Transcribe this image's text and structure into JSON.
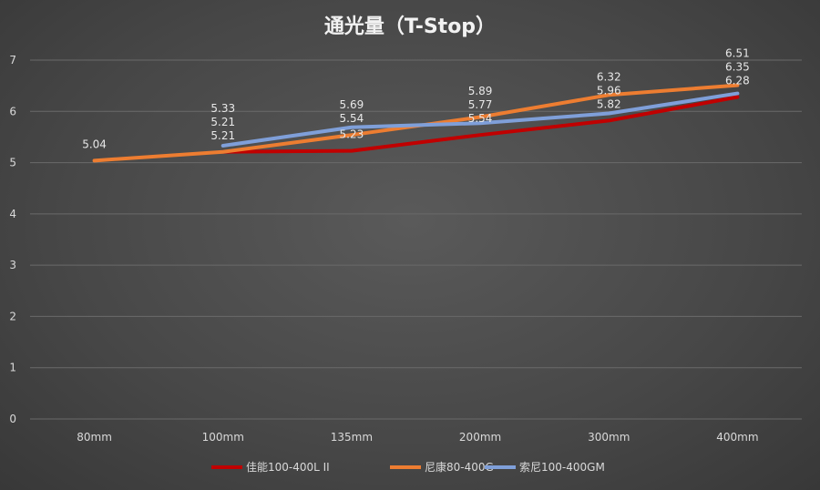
{
  "chart_data": {
    "type": "line",
    "title": "通光量（T-Stop）",
    "xlabel": "",
    "ylabel": "",
    "categories": [
      "80mm",
      "100mm",
      "135mm",
      "200mm",
      "300mm",
      "400mm"
    ],
    "ylim": [
      0,
      7
    ],
    "yticks": [
      0,
      1,
      2,
      3,
      4,
      5,
      6,
      7
    ],
    "grid": true,
    "legend_position": "bottom",
    "series": [
      {
        "name": "佳能100-400L II",
        "color": "#c00000",
        "values": [
          null,
          5.21,
          5.23,
          5.54,
          5.82,
          6.28
        ]
      },
      {
        "name": "尼康80-400G",
        "color": "#ed7d31",
        "values": [
          5.04,
          5.21,
          5.54,
          5.89,
          6.32,
          6.51
        ]
      },
      {
        "name": "索尼100-400GM",
        "color": "#7f9fd9",
        "values": [
          null,
          5.33,
          5.69,
          5.77,
          5.96,
          6.35
        ]
      }
    ]
  }
}
